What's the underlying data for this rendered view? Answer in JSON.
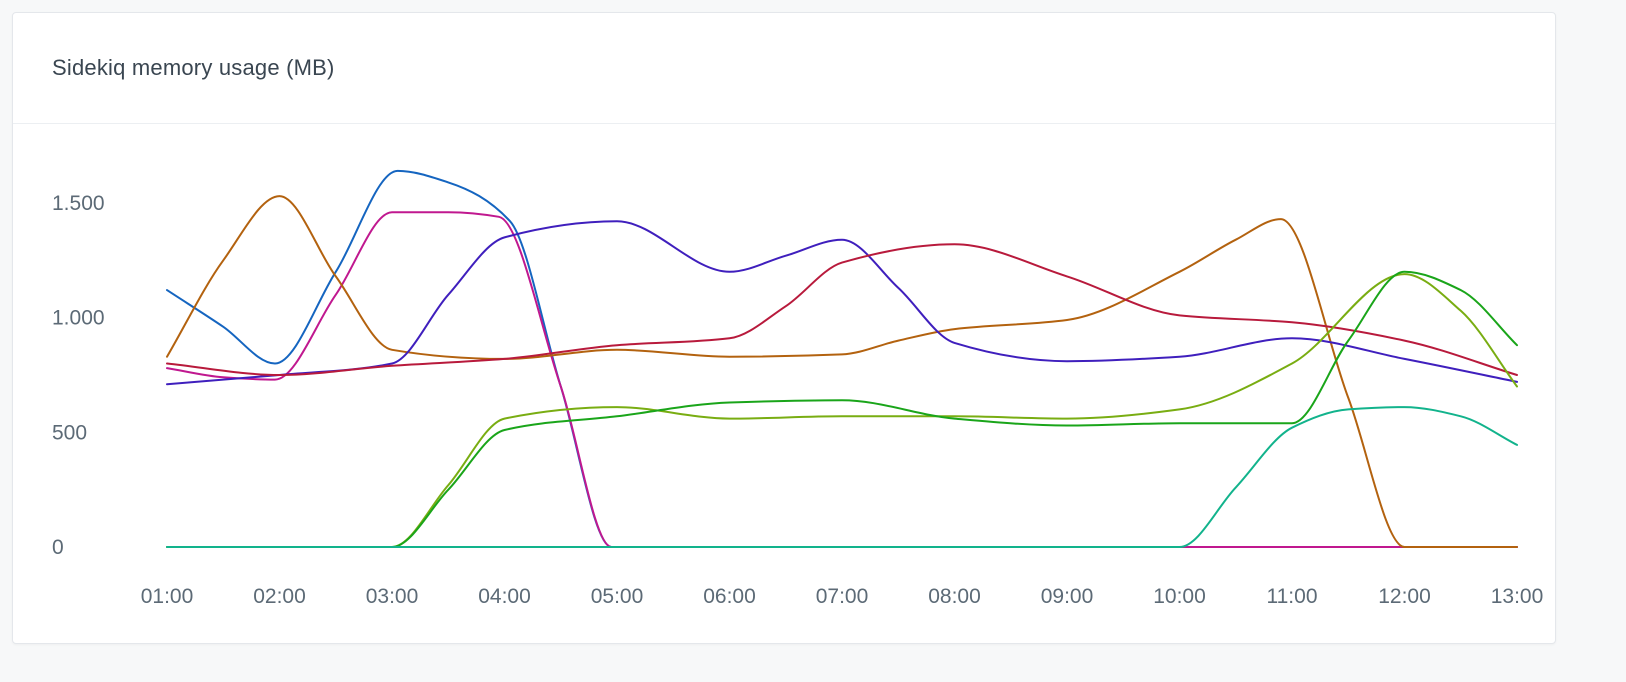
{
  "panel": {
    "title": "Sidekiq memory usage (MB)"
  },
  "chart_data": {
    "type": "line",
    "title": "Sidekiq memory usage (MB)",
    "xlabel": "",
    "ylabel": "",
    "ylim": [
      0,
      1650
    ],
    "y_ticks": [
      0,
      500,
      1000,
      1500
    ],
    "y_tick_labels": [
      "0",
      "500",
      "1.000",
      "1.500"
    ],
    "grid": false,
    "legend": "none",
    "categories": [
      "01:00",
      "02:00",
      "03:00",
      "04:00",
      "05:00",
      "06:00",
      "07:00",
      "08:00",
      "09:00",
      "10:00",
      "11:00",
      "12:00",
      "13:00"
    ],
    "series": [
      {
        "color": "#1565c0",
        "points": [
          [
            1.0,
            1120
          ],
          [
            1.5,
            960
          ],
          [
            1.96,
            800
          ],
          [
            2.5,
            1200
          ],
          [
            3.05,
            1640
          ],
          [
            3.5,
            1590
          ],
          [
            4.05,
            1420
          ],
          [
            4.5,
            700
          ],
          [
            4.95,
            0
          ],
          [
            13.0,
            0
          ]
        ]
      },
      {
        "color": "#c0188f",
        "points": [
          [
            1.0,
            780
          ],
          [
            1.5,
            740
          ],
          [
            1.96,
            730
          ],
          [
            2.5,
            1100
          ],
          [
            3.0,
            1460
          ],
          [
            3.5,
            1460
          ],
          [
            3.95,
            1440
          ],
          [
            4.5,
            700
          ],
          [
            4.95,
            0
          ],
          [
            13.0,
            0
          ]
        ]
      },
      {
        "color": "#b3620f",
        "points": [
          [
            1.0,
            830
          ],
          [
            1.5,
            1250
          ],
          [
            2.0,
            1530
          ],
          [
            2.5,
            1180
          ],
          [
            3.0,
            860
          ],
          [
            4.0,
            820
          ],
          [
            5.0,
            860
          ],
          [
            6.0,
            830
          ],
          [
            7.0,
            840
          ],
          [
            7.5,
            900
          ],
          [
            8.0,
            950
          ],
          [
            9.0,
            990
          ],
          [
            10.0,
            1200
          ],
          [
            10.5,
            1340
          ],
          [
            10.9,
            1430
          ],
          [
            11.5,
            650
          ],
          [
            12.0,
            0
          ],
          [
            13.0,
            0
          ]
        ]
      },
      {
        "color": "#3f1fbd",
        "points": [
          [
            1.0,
            710
          ],
          [
            2.0,
            750
          ],
          [
            3.0,
            800
          ],
          [
            3.5,
            1100
          ],
          [
            4.0,
            1350
          ],
          [
            5.0,
            1420
          ],
          [
            6.0,
            1200
          ],
          [
            6.5,
            1270
          ],
          [
            7.0,
            1340
          ],
          [
            7.5,
            1130
          ],
          [
            8.0,
            890
          ],
          [
            9.0,
            810
          ],
          [
            10.0,
            830
          ],
          [
            11.0,
            910
          ],
          [
            12.0,
            820
          ],
          [
            13.0,
            720
          ]
        ]
      },
      {
        "color": "#b81a3c",
        "points": [
          [
            1.0,
            800
          ],
          [
            2.0,
            750
          ],
          [
            3.0,
            790
          ],
          [
            4.0,
            820
          ],
          [
            5.0,
            880
          ],
          [
            6.0,
            910
          ],
          [
            6.5,
            1050
          ],
          [
            7.0,
            1240
          ],
          [
            8.0,
            1320
          ],
          [
            9.0,
            1180
          ],
          [
            10.0,
            1010
          ],
          [
            11.0,
            980
          ],
          [
            12.0,
            900
          ],
          [
            13.0,
            750
          ]
        ]
      },
      {
        "color": "#79ad12",
        "points": [
          [
            1.0,
            0
          ],
          [
            3.0,
            0
          ],
          [
            3.5,
            270
          ],
          [
            4.0,
            560
          ],
          [
            5.0,
            610
          ],
          [
            6.0,
            560
          ],
          [
            7.0,
            570
          ],
          [
            8.0,
            570
          ],
          [
            9.0,
            560
          ],
          [
            10.0,
            600
          ],
          [
            11.0,
            800
          ],
          [
            12.0,
            1190
          ],
          [
            12.5,
            1030
          ],
          [
            13.0,
            700
          ]
        ]
      },
      {
        "color": "#1aa51a",
        "points": [
          [
            1.0,
            0
          ],
          [
            3.0,
            0
          ],
          [
            3.5,
            250
          ],
          [
            4.0,
            510
          ],
          [
            5.0,
            570
          ],
          [
            6.0,
            630
          ],
          [
            7.0,
            640
          ],
          [
            8.0,
            560
          ],
          [
            9.0,
            530
          ],
          [
            10.0,
            540
          ],
          [
            11.0,
            540
          ],
          [
            11.5,
            900
          ],
          [
            12.0,
            1200
          ],
          [
            12.5,
            1120
          ],
          [
            13.0,
            880
          ]
        ]
      },
      {
        "color": "#12b38c",
        "points": [
          [
            1.0,
            0
          ],
          [
            10.0,
            0
          ],
          [
            10.5,
            260
          ],
          [
            11.0,
            520
          ],
          [
            11.5,
            600
          ],
          [
            12.0,
            610
          ],
          [
            12.5,
            570
          ],
          [
            13.0,
            445
          ]
        ]
      }
    ]
  }
}
